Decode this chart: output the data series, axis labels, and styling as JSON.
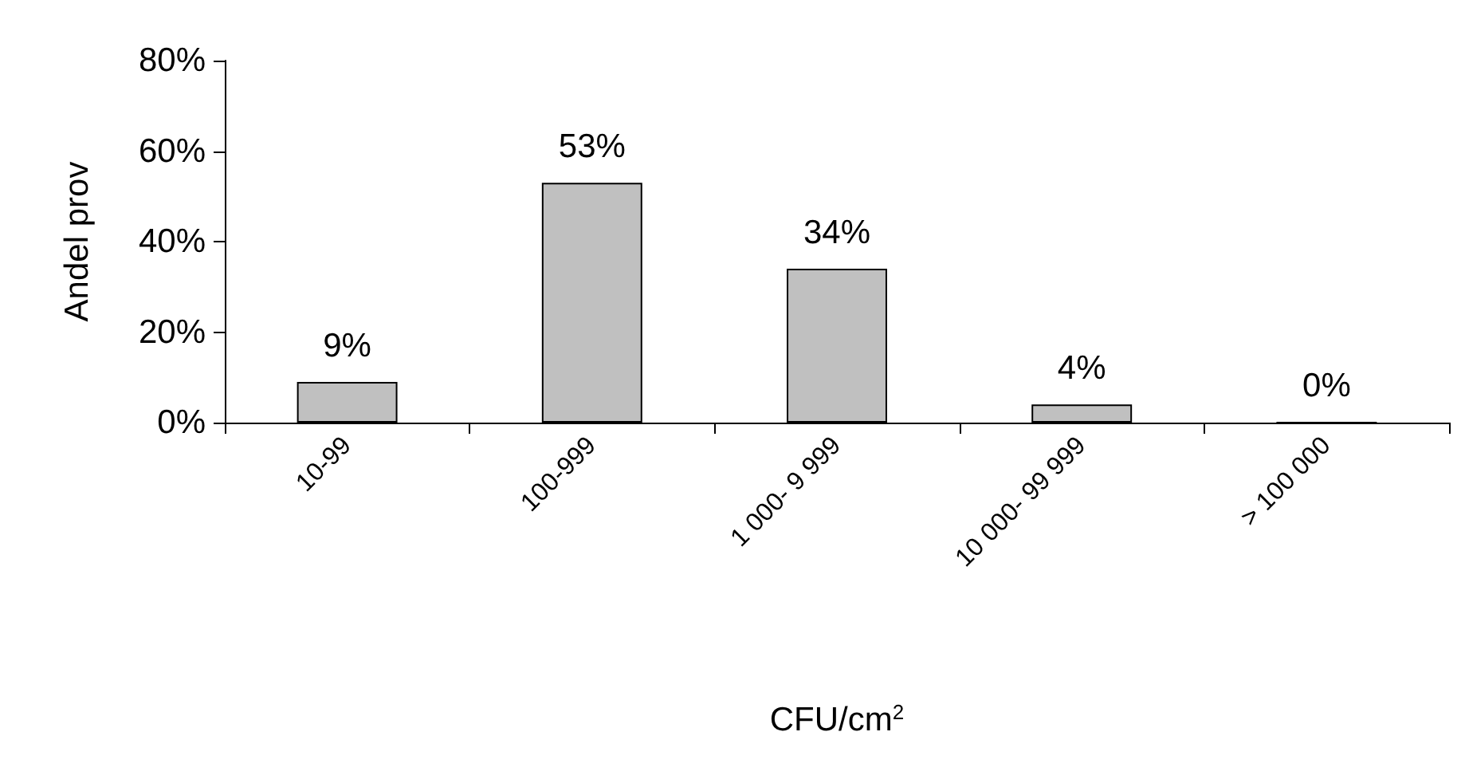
{
  "chart_data": {
    "type": "bar",
    "xlabel": "CFU/cm$^{2}$",
    "ylabel": "Andel prov",
    "categories": [
      "10-99",
      "100-999",
      "1 000- 9 999",
      "10 000- 99 999",
      "> 100 000"
    ],
    "values": [
      9,
      53,
      34,
      4,
      0
    ],
    "value_labels": [
      "9%",
      "53%",
      "34%",
      "4%",
      "0%"
    ],
    "color": "#c0c0c0",
    "ylim": [
      0,
      80
    ],
    "yticks": [
      {
        "value": 0,
        "label": "0%"
      },
      {
        "value": 20,
        "label": "20%"
      },
      {
        "value": 40,
        "label": "40%"
      },
      {
        "value": 60,
        "label": "60%"
      },
      {
        "value": 80,
        "label": "80%"
      }
    ],
    "grid": false
  }
}
